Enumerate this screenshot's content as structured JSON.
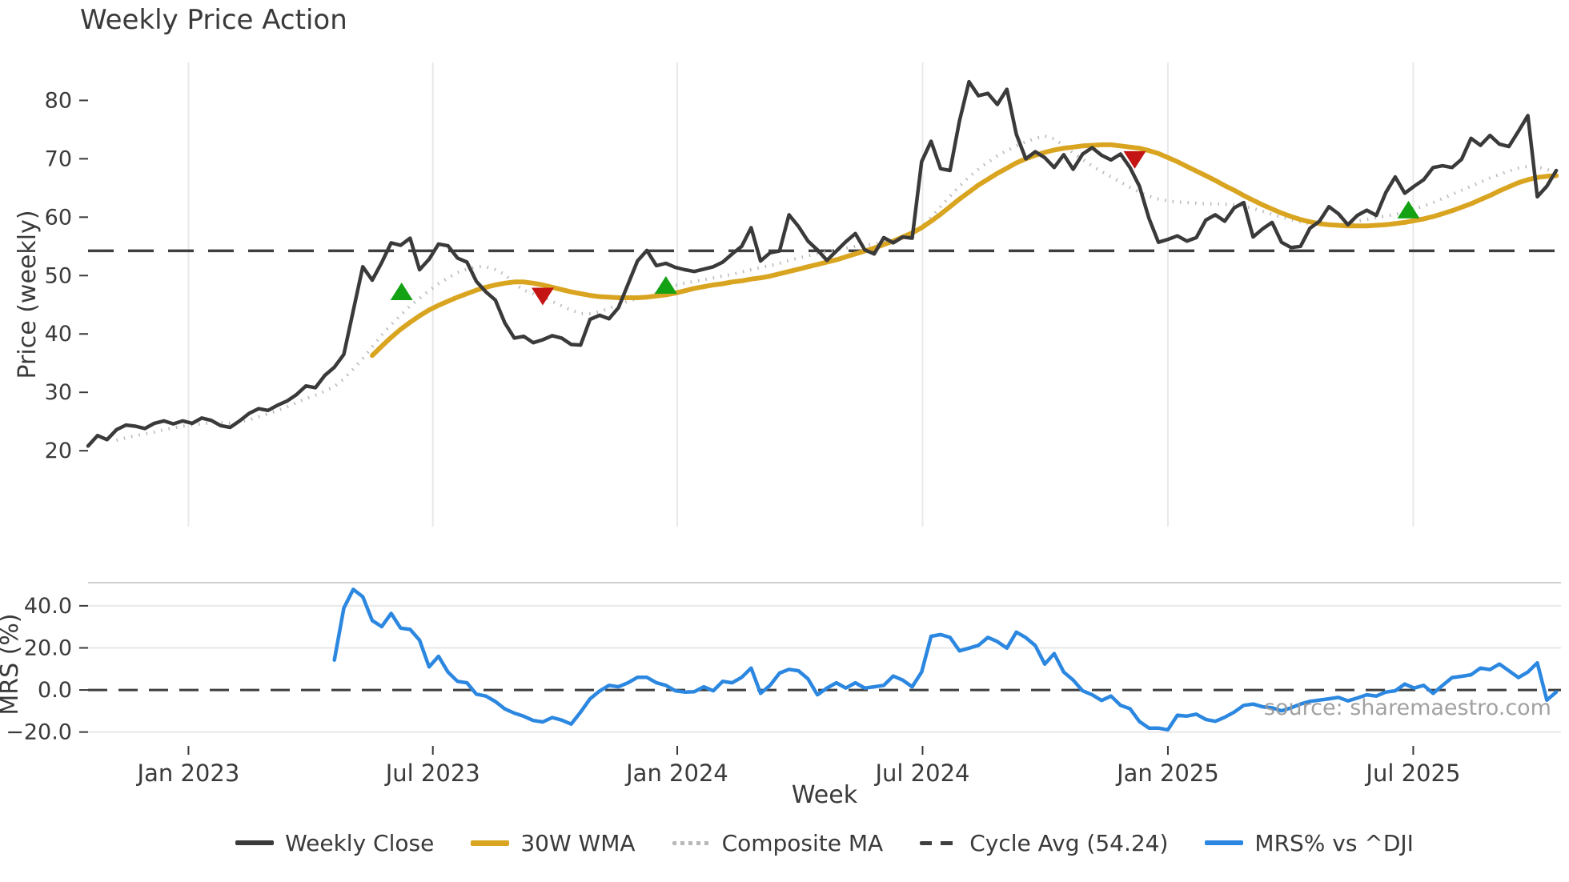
{
  "title": "Weekly Price Action",
  "xlabel": "Week",
  "source": "source: sharemaestro.com",
  "price_panel": {
    "ylabel": "Price (weekly)"
  },
  "mrs_panel": {
    "ylabel": "MRS (%)"
  },
  "colors": {
    "weekly_close": "#3a3a3a",
    "wma_30w": "#d9a521",
    "composite_ma": "#b8b8b8",
    "cycle_avg": "#3f3f3f",
    "mrs_line": "#2b87e0",
    "buy_marker": "#14a114",
    "sell_marker": "#c41414",
    "gridline": "#e9e9e9",
    "panel_spine": "#cfcfcf",
    "source_text": "#9a9a9a"
  },
  "legend": {
    "items": [
      {
        "label": "Weekly Close",
        "style": "solid",
        "color": "#3a3a3a"
      },
      {
        "label": "30W WMA",
        "style": "solid-thick",
        "color": "#d9a521"
      },
      {
        "label": "Composite MA",
        "style": "dotted",
        "color": "#b8b8b8"
      },
      {
        "label": "Cycle Avg (54.24)",
        "style": "dashed",
        "color": "#3f3f3f"
      },
      {
        "label": "MRS% vs ^DJI",
        "style": "solid",
        "color": "#2b87e0"
      }
    ]
  },
  "chart_data": [
    {
      "type": "line",
      "title": "Weekly Price Action",
      "xlabel": "Week",
      "ylabel": "Price (weekly)",
      "x_unit": "week_index_from_late_oct_2022",
      "xlim": [
        0,
        155.5
      ],
      "ylim": [
        7,
        86.5
      ],
      "yticks": [
        20,
        30,
        40,
        50,
        60,
        70,
        80
      ],
      "xtick_weeks": [
        10.6,
        36.4,
        62.2,
        88.1,
        114.0,
        139.9
      ],
      "xtick_labels": [
        "Jan 2023",
        "Jul 2023",
        "Jan 2024",
        "Jul 2024",
        "Jan 2025",
        "Jul 2025"
      ],
      "grid": "vertical-only",
      "cycle_avg_value": 54.24,
      "series": [
        {
          "name": "Weekly Close",
          "color": "#3a3a3a",
          "style": "solid",
          "width": 4.5,
          "values": [
            20.8,
            22.6,
            21.9,
            23.6,
            24.4,
            24.2,
            23.8,
            24.7,
            25.1,
            24.6,
            25.1,
            24.7,
            25.6,
            25.2,
            24.3,
            24.0,
            25.1,
            26.4,
            27.2,
            26.9,
            27.8,
            28.5,
            29.6,
            31.1,
            30.8,
            32.9,
            34.3,
            36.5,
            44.0,
            51.5,
            49.2,
            52.2,
            55.6,
            55.2,
            56.4,
            51.0,
            52.8,
            55.4,
            55.1,
            53.0,
            52.3,
            49.0,
            47.2,
            45.8,
            41.9,
            39.3,
            39.6,
            38.5,
            39.0,
            39.7,
            39.3,
            38.2,
            38.1,
            42.5,
            43.2,
            42.6,
            44.5,
            48.5,
            52.5,
            54.3,
            51.7,
            52.1,
            51.4,
            51.0,
            50.7,
            51.1,
            51.5,
            52.3,
            53.7,
            55.0,
            58.2,
            52.5,
            53.9,
            54.2,
            60.4,
            58.4,
            55.9,
            54.4,
            52.6,
            54.2,
            55.8,
            57.2,
            54.4,
            53.7,
            56.5,
            55.6,
            56.6,
            56.4,
            69.5,
            73.0,
            68.3,
            68.0,
            76.5,
            83.2,
            80.8,
            81.2,
            79.3,
            81.9,
            74.2,
            70.0,
            71.2,
            70.2,
            68.5,
            70.7,
            68.2,
            70.8,
            71.9,
            70.6,
            69.8,
            70.8,
            68.5,
            65.3,
            59.8,
            55.7,
            56.2,
            56.8,
            55.9,
            56.5,
            59.5,
            60.4,
            59.3,
            61.6,
            62.5,
            56.6,
            58.0,
            59.1,
            55.7,
            54.8,
            55.0,
            58.1,
            59.3,
            61.8,
            60.6,
            58.7,
            60.3,
            61.2,
            60.3,
            64.2,
            66.9,
            64.1,
            65.3,
            66.4,
            68.5,
            68.8,
            68.5,
            69.9,
            73.5,
            72.3,
            74.0,
            72.5,
            72.1,
            74.7,
            77.4,
            63.5,
            65.3,
            68.0
          ]
        },
        {
          "name": "30W WMA",
          "color": "#d9a521",
          "style": "solid",
          "width": 6,
          "values": [
            null,
            null,
            null,
            null,
            null,
            null,
            null,
            null,
            null,
            null,
            null,
            null,
            null,
            null,
            null,
            null,
            null,
            null,
            null,
            null,
            null,
            null,
            null,
            null,
            null,
            null,
            null,
            null,
            null,
            null,
            36.3,
            37.9,
            39.4,
            40.8,
            42.0,
            43.1,
            44.1,
            44.9,
            45.6,
            46.3,
            46.9,
            47.5,
            48.0,
            48.4,
            48.7,
            48.9,
            48.9,
            48.7,
            48.4,
            48.0,
            47.6,
            47.2,
            46.9,
            46.6,
            46.4,
            46.3,
            46.2,
            46.2,
            46.2,
            46.3,
            46.5,
            46.7,
            47.0,
            47.4,
            47.8,
            48.1,
            48.4,
            48.6,
            48.9,
            49.1,
            49.4,
            49.6,
            49.9,
            50.3,
            50.7,
            51.1,
            51.5,
            51.9,
            52.3,
            52.7,
            53.2,
            53.7,
            54.2,
            54.7,
            55.3,
            55.9,
            56.6,
            57.3,
            58.2,
            59.3,
            60.5,
            61.8,
            63.1,
            64.3,
            65.5,
            66.5,
            67.5,
            68.4,
            69.3,
            70.0,
            70.6,
            71.1,
            71.5,
            71.8,
            72.0,
            72.2,
            72.3,
            72.4,
            72.4,
            72.2,
            72.0,
            71.8,
            71.4,
            70.9,
            70.2,
            69.5,
            68.7,
            67.9,
            67.1,
            66.3,
            65.4,
            64.6,
            63.7,
            62.9,
            62.1,
            61.4,
            60.7,
            60.1,
            59.6,
            59.2,
            58.9,
            58.7,
            58.6,
            58.5,
            58.5,
            58.5,
            58.6,
            58.7,
            58.9,
            59.1,
            59.4,
            59.7,
            60.1,
            60.6,
            61.1,
            61.7,
            62.3,
            63.0,
            63.7,
            64.5,
            65.2,
            65.9,
            66.4,
            66.8,
            67.0,
            67.1
          ]
        },
        {
          "name": "Composite MA",
          "color": "#b8b8b8",
          "style": "dotted",
          "width": 4,
          "values": [
            null,
            null,
            null,
            21.8,
            22.2,
            22.6,
            22.9,
            23.2,
            23.6,
            23.9,
            24.2,
            24.4,
            24.6,
            24.8,
            24.8,
            24.7,
            24.9,
            25.3,
            25.8,
            26.3,
            26.9,
            27.5,
            28.2,
            28.9,
            29.5,
            30.2,
            31.0,
            32.3,
            34.0,
            35.8,
            37.8,
            39.8,
            41.6,
            43.2,
            44.8,
            46.1,
            47.4,
            48.6,
            49.6,
            50.5,
            51.1,
            51.5,
            51.5,
            51.0,
            50.2,
            48.6,
            47.5,
            46.9,
            46.4,
            45.6,
            44.8,
            44.1,
            43.5,
            43.5,
            43.8,
            44.4,
            45.0,
            45.6,
            46.1,
            46.4,
            46.9,
            47.5,
            48.3,
            48.7,
            49.0,
            49.3,
            49.6,
            49.9,
            50.2,
            50.6,
            51.0,
            51.4,
            51.7,
            52.1,
            52.6,
            53.0,
            53.4,
            53.8,
            54.1,
            54.4,
            54.7,
            55.0,
            55.2,
            55.4,
            55.7,
            56.0,
            56.5,
            57.1,
            58.2,
            60.0,
            61.8,
            63.6,
            65.3,
            66.9,
            68.2,
            69.4,
            70.5,
            71.4,
            72.2,
            72.9,
            73.5,
            73.9,
            73.4,
            72.3,
            71.0,
            69.9,
            68.8,
            67.8,
            66.9,
            66.0,
            65.1,
            64.3,
            63.6,
            63.1,
            62.8,
            62.6,
            62.5,
            62.4,
            62.3,
            62.3,
            62.2,
            62.1,
            61.9,
            61.5,
            61.0,
            60.5,
            60.0,
            59.6,
            59.2,
            58.9,
            58.8,
            58.7,
            58.8,
            59.0,
            59.3,
            59.6,
            59.9,
            60.2,
            60.5,
            60.9,
            61.4,
            61.9,
            62.5,
            63.2,
            63.9,
            64.6,
            65.3,
            66.0,
            66.7,
            67.3,
            67.9,
            68.4,
            68.7,
            68.6,
            68.2,
            67.6
          ]
        },
        {
          "name": "Cycle Avg (54.24)",
          "color": "#3f3f3f",
          "style": "dashed",
          "width": 3.5,
          "constant": 54.24
        }
      ],
      "markers": {
        "buy": [
          [
            33.1,
            47.3
          ],
          [
            61.0,
            48.4
          ],
          [
            139.4,
            61.3
          ]
        ],
        "sell": [
          [
            48.0,
            46.4
          ],
          [
            110.5,
            69.8
          ]
        ]
      }
    },
    {
      "type": "line",
      "ylabel": "MRS (%)",
      "xlim": [
        0,
        155.5
      ],
      "ylim": [
        -26.6,
        51
      ],
      "yticks": [
        40,
        20,
        0,
        -20
      ],
      "ytick_labels": [
        "40.0",
        "20.0",
        "0.0",
        "−20.0"
      ],
      "zero_line": 0,
      "grid": "horizontal-only",
      "series": [
        {
          "name": "MRS% vs ^DJI",
          "color": "#2b87e0",
          "style": "solid",
          "width": 4.5,
          "values": [
            null,
            null,
            null,
            null,
            null,
            null,
            null,
            null,
            null,
            null,
            null,
            null,
            null,
            null,
            null,
            null,
            null,
            null,
            null,
            null,
            null,
            null,
            null,
            null,
            null,
            null,
            14.2,
            38.9,
            47.8,
            44.3,
            33.0,
            30.1,
            36.4,
            29.4,
            28.8,
            23.7,
            11.0,
            16.0,
            8.5,
            4.1,
            3.4,
            -2.0,
            -2.9,
            -5.5,
            -9.0,
            -11.0,
            -12.5,
            -14.5,
            -15.2,
            -13.1,
            -14.3,
            -16.2,
            -10.5,
            -4.2,
            -0.5,
            2.2,
            1.5,
            3.4,
            6.0,
            6.0,
            3.4,
            2.2,
            -0.4,
            -1.0,
            -0.8,
            1.5,
            -0.4,
            4.1,
            3.4,
            6.0,
            10.4,
            -1.6,
            2.2,
            8.0,
            9.8,
            9.1,
            5.3,
            -2.3,
            0.9,
            3.4,
            0.9,
            3.4,
            0.9,
            1.5,
            2.2,
            6.6,
            4.7,
            1.5,
            8.5,
            25.5,
            26.3,
            25.0,
            18.6,
            19.9,
            21.2,
            25.0,
            23.0,
            19.9,
            27.5,
            24.9,
            21.1,
            12.3,
            17.3,
            8.5,
            4.7,
            -0.4,
            -2.3,
            -5.0,
            -2.9,
            -7.3,
            -8.9,
            -15.0,
            -18.1,
            -18.1,
            -18.9,
            -12.0,
            -12.4,
            -11.5,
            -14.0,
            -14.9,
            -13.0,
            -10.5,
            -7.3,
            -6.7,
            -8.0,
            -8.5,
            -9.9,
            -8.5,
            -6.7,
            -5.4,
            -4.8,
            -4.2,
            -3.5,
            -5.2,
            -3.8,
            -2.3,
            -2.9,
            -1.0,
            -0.4,
            2.8,
            0.9,
            2.2,
            -1.6,
            2.2,
            5.9,
            6.5,
            7.2,
            10.4,
            9.7,
            12.3,
            9.1,
            5.9,
            8.5,
            12.9,
            -4.8,
            -1.0
          ]
        }
      ]
    }
  ]
}
